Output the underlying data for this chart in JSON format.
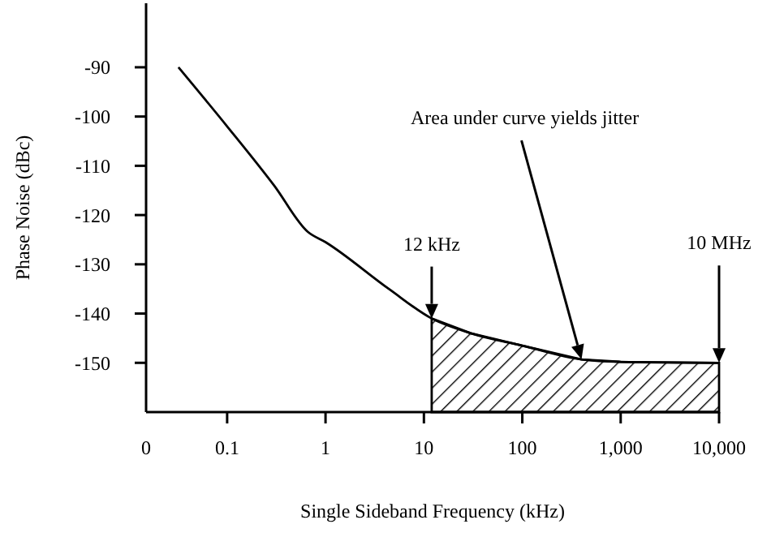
{
  "chart_data": {
    "type": "line",
    "xlabel": "Single Sideband Frequency (kHz)",
    "ylabel": "Phase Noise (dBc)",
    "log": "x",
    "xlim": [
      0.015,
      10000
    ],
    "ylim": [
      -160,
      -77
    ],
    "xticks": [
      {
        "value": 0.015,
        "label": "0"
      },
      {
        "value": 0.1,
        "label": "0.1"
      },
      {
        "value": 1,
        "label": "1"
      },
      {
        "value": 10,
        "label": "10"
      },
      {
        "value": 100,
        "label": "100"
      },
      {
        "value": 1000,
        "label": "1,000"
      },
      {
        "value": 10000,
        "label": "10,000"
      }
    ],
    "yticks": [
      -90,
      -100,
      -110,
      -120,
      -130,
      -140,
      -150
    ],
    "grid": false,
    "marker": "none",
    "line_style": "solid",
    "series": [
      {
        "type": "line",
        "color": "#000000",
        "x": [
          0.032,
          0.1,
          0.3,
          0.66,
          1,
          4.4,
          12,
          30,
          100,
          400,
          1000,
          10000
        ],
        "values": [
          -90,
          -102,
          -114,
          -123.4,
          -125.5,
          -135,
          -141,
          -144,
          -146.5,
          -149.3,
          -149.8,
          -150
        ],
        "lower": [
          null,
          null,
          null,
          null,
          null,
          null,
          -160,
          -160,
          -160,
          -160,
          -160,
          -160
        ],
        "upper": [
          null,
          null,
          null,
          null,
          null,
          null,
          -141,
          -144,
          -146.5,
          -149.3,
          -149.8,
          -150
        ]
      }
    ],
    "annotations": [
      {
        "text": "Area under curve yields jitter",
        "x": 400,
        "y": -149.3
      },
      {
        "text": "12 kHz",
        "x": 12,
        "y": -141
      },
      {
        "text": "10 MHz",
        "x": 10000,
        "y": -150
      }
    ]
  }
}
